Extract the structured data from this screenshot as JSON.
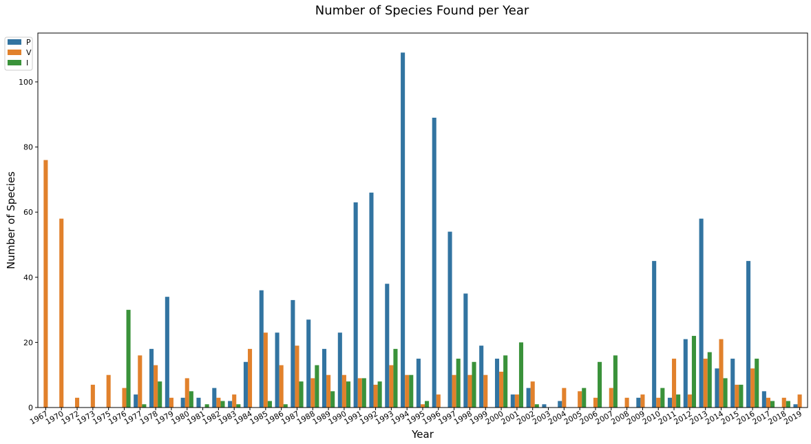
{
  "chart_data": {
    "type": "bar",
    "title": "Number of Species Found per Year",
    "xlabel": "Year",
    "ylabel": "Number of Species",
    "ylim": [
      0,
      115
    ],
    "yticks": [
      0,
      20,
      40,
      60,
      80,
      100
    ],
    "grid": false,
    "legend_position": "top-left",
    "categories": [
      "1967",
      "1970",
      "1972",
      "1973",
      "1975",
      "1976",
      "1977",
      "1978",
      "1979",
      "1980",
      "1981",
      "1982",
      "1983",
      "1984",
      "1985",
      "1986",
      "1987",
      "1988",
      "1989",
      "1990",
      "1991",
      "1992",
      "1993",
      "1994",
      "1995",
      "1996",
      "1997",
      "1998",
      "1999",
      "2000",
      "2001",
      "2002",
      "2003",
      "2004",
      "2005",
      "2006",
      "2007",
      "2008",
      "2009",
      "2010",
      "2011",
      "2012",
      "2013",
      "2014",
      "2015",
      "2016",
      "2017",
      "2018",
      "2019"
    ],
    "series": [
      {
        "name": "P",
        "color": "#3274a1",
        "values": [
          0,
          0,
          0,
          0,
          0,
          0,
          4,
          18,
          34,
          3,
          3,
          6,
          2,
          14,
          36,
          23,
          33,
          27,
          18,
          23,
          63,
          66,
          38,
          109,
          15,
          89,
          54,
          35,
          19,
          15,
          4,
          6,
          1,
          2,
          0,
          0,
          0,
          0,
          3,
          45,
          3,
          21,
          58,
          12,
          15,
          45,
          5,
          0,
          1
        ]
      },
      {
        "name": "V",
        "color": "#e1812c",
        "values": [
          76,
          58,
          3,
          7,
          10,
          6,
          16,
          13,
          3,
          9,
          0,
          3,
          4,
          18,
          23,
          13,
          19,
          9,
          10,
          10,
          9,
          7,
          13,
          10,
          1,
          4,
          10,
          10,
          10,
          11,
          4,
          8,
          0,
          6,
          5,
          3,
          6,
          3,
          4,
          3,
          15,
          4,
          15,
          21,
          7,
          12,
          3,
          3,
          4
        ]
      },
      {
        "name": "I",
        "color": "#3a923a",
        "values": [
          0,
          0,
          0,
          0,
          0,
          30,
          1,
          8,
          0,
          5,
          1,
          2,
          1,
          0,
          2,
          1,
          8,
          13,
          5,
          8,
          9,
          8,
          18,
          10,
          2,
          0,
          15,
          14,
          0,
          16,
          20,
          1,
          0,
          0,
          6,
          14,
          16,
          0,
          0,
          6,
          4,
          22,
          17,
          9,
          7,
          15,
          2,
          2,
          0
        ]
      }
    ]
  }
}
